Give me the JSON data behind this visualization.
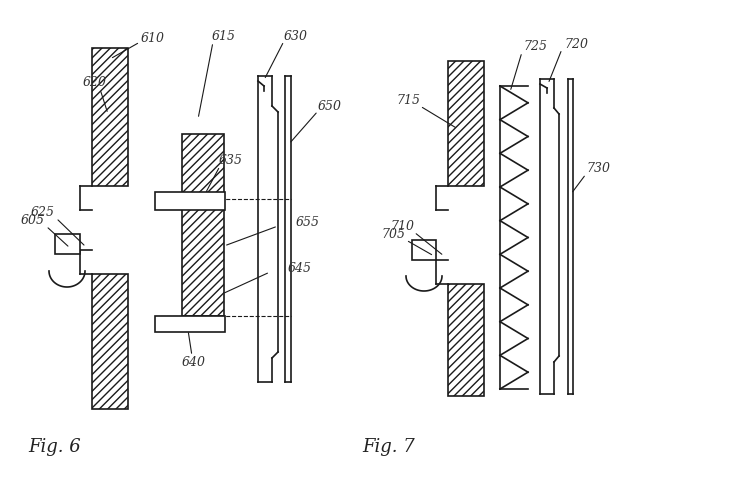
{
  "bg_color": "#ffffff",
  "line_color": "#1a1a1a",
  "fig6_label": "Fig. 6",
  "fig7_label": "Fig. 7",
  "fontsize_label": 9,
  "fontsize_fig": 13
}
